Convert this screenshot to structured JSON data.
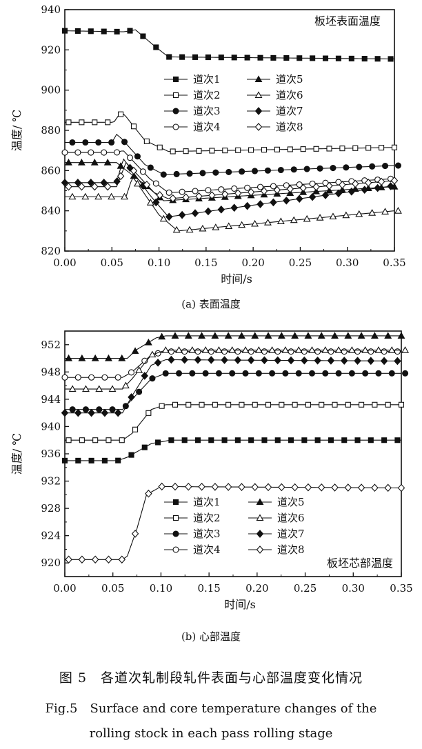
{
  "chart_data": [
    {
      "type": "line",
      "panel_caption": "(a) 表面温度",
      "annotation": "板坯表面温度",
      "xlabel": "时间/s",
      "ylabel": "温度/ ℃",
      "xlim": [
        0,
        0.35
      ],
      "ylim": [
        820,
        940
      ],
      "xticks": [
        "0.00",
        "0.05",
        "0.10",
        "0.15",
        "0.20",
        "0.25",
        "0.30",
        "0.35"
      ],
      "yticks": [
        "820",
        "840",
        "860",
        "880",
        "900",
        "920",
        "940"
      ],
      "legend_labels": [
        "道次1",
        "道次2",
        "道次3",
        "道次4",
        "道次5",
        "道次6",
        "道次7",
        "道次8"
      ],
      "series": [
        {
          "name": "道次1",
          "marker": "square-filled",
          "x": [
            0,
            0.063,
            0.075,
            0.095,
            0.11,
            0.35
          ],
          "y": [
            929.5,
            929,
            930,
            922,
            916.5,
            915.5
          ]
        },
        {
          "name": "道次2",
          "marker": "square-open",
          "x": [
            0,
            0.052,
            0.058,
            0.063,
            0.085,
            0.11,
            0.35
          ],
          "y": [
            884,
            884,
            888,
            888,
            875,
            869.5,
            871.5
          ]
        },
        {
          "name": "道次3",
          "marker": "circle-filled",
          "x": [
            0,
            0.05,
            0.055,
            0.06,
            0.085,
            0.105,
            0.35
          ],
          "y": [
            874,
            874,
            878,
            876,
            863,
            858,
            862.5
          ]
        },
        {
          "name": "道次4",
          "marker": "circle-open",
          "x": [
            0,
            0.055,
            0.062,
            0.09,
            0.11,
            0.35
          ],
          "y": [
            869,
            869,
            870,
            856,
            849,
            856
          ]
        },
        {
          "name": "道次5",
          "marker": "triangle-filled",
          "x": [
            0,
            0.055,
            0.06,
            0.085,
            0.105,
            0.35
          ],
          "y": [
            864,
            864,
            862,
            853,
            845,
            852
          ]
        },
        {
          "name": "道次6",
          "marker": "triangle-open",
          "x": [
            0,
            0.065,
            0.072,
            0.1,
            0.12,
            0.35
          ],
          "y": [
            847,
            847,
            857,
            838,
            830,
            840
          ]
        },
        {
          "name": "道次7",
          "marker": "diamond-filled",
          "x": [
            0,
            0.055,
            0.062,
            0.09,
            0.11,
            0.35
          ],
          "y": [
            854,
            854,
            866,
            848,
            837,
            852.5
          ]
        },
        {
          "name": "道次8",
          "marker": "diamond-open",
          "x": [
            0,
            0.055,
            0.065,
            0.095,
            0.11,
            0.35
          ],
          "y": [
            852,
            852,
            864,
            849,
            846,
            855
          ]
        }
      ]
    },
    {
      "type": "line",
      "panel_caption": "(b) 心部温度",
      "annotation": "板坯芯部温度",
      "xlabel": "时间/s",
      "ylabel": "温度/ ℃",
      "xlim": [
        0,
        0.35
      ],
      "ylim": [
        918,
        954
      ],
      "xticks": [
        "0.00",
        "0.05",
        "0.10",
        "0.15",
        "0.20",
        "0.25",
        "0.30",
        "0.35"
      ],
      "yticks": [
        "920",
        "924",
        "928",
        "932",
        "936",
        "940",
        "944",
        "948",
        "952"
      ],
      "legend_labels": [
        "道次1",
        "道次2",
        "道次3",
        "道次4",
        "道次5",
        "道次6",
        "道次7",
        "道次8"
      ],
      "series": [
        {
          "name": "道次1",
          "marker": "square-filled",
          "x": [
            0,
            0.055,
            0.065,
            0.09,
            0.11,
            0.35
          ],
          "y": [
            935,
            935,
            935.5,
            937.5,
            938,
            938
          ]
        },
        {
          "name": "道次2",
          "marker": "square-open",
          "x": [
            0,
            0.06,
            0.07,
            0.09,
            0.105,
            0.35
          ],
          "y": [
            938,
            938,
            939,
            942.5,
            943.2,
            943.2
          ]
        },
        {
          "name": "道次3",
          "marker": "circle-filled",
          "x": [
            0,
            0.06,
            0.07,
            0.09,
            0.105,
            0.35
          ],
          "y": [
            942.5,
            942.5,
            944,
            947,
            947.8,
            947.8
          ]
        },
        {
          "name": "道次4",
          "marker": "circle-open",
          "x": [
            0,
            0.06,
            0.07,
            0.09,
            0.105,
            0.35
          ],
          "y": [
            947.2,
            947.2,
            948,
            950.5,
            951,
            951
          ]
        },
        {
          "name": "道次5",
          "marker": "triangle-filled",
          "x": [
            0,
            0.065,
            0.075,
            0.095,
            0.105,
            0.35
          ],
          "y": [
            950,
            950,
            951.3,
            953,
            953.3,
            953.3
          ]
        },
        {
          "name": "道次6",
          "marker": "triangle-open",
          "x": [
            0,
            0.06,
            0.07,
            0.09,
            0.105,
            0.35
          ],
          "y": [
            945.5,
            945.5,
            947,
            950.5,
            951.2,
            951.2
          ]
        },
        {
          "name": "道次7",
          "marker": "diamond-filled",
          "x": [
            0,
            0.06,
            0.07,
            0.09,
            0.105,
            0.35
          ],
          "y": [
            942,
            942,
            944.5,
            949,
            949.8,
            949.6
          ]
        },
        {
          "name": "道次8",
          "marker": "diamond-open",
          "x": [
            0,
            0.06,
            0.065,
            0.075,
            0.085,
            0.1,
            0.35
          ],
          "y": [
            920.5,
            920.5,
            921,
            925,
            930,
            931.2,
            931
          ]
        }
      ]
    }
  ],
  "figure": {
    "caption_zh": "图 5　各道次轧制段轧件表面与心部温度变化情况",
    "caption_en_line1": "Fig.5　Surface and core temperature changes of the",
    "caption_en_line2": "rolling stock in each pass rolling stage"
  }
}
